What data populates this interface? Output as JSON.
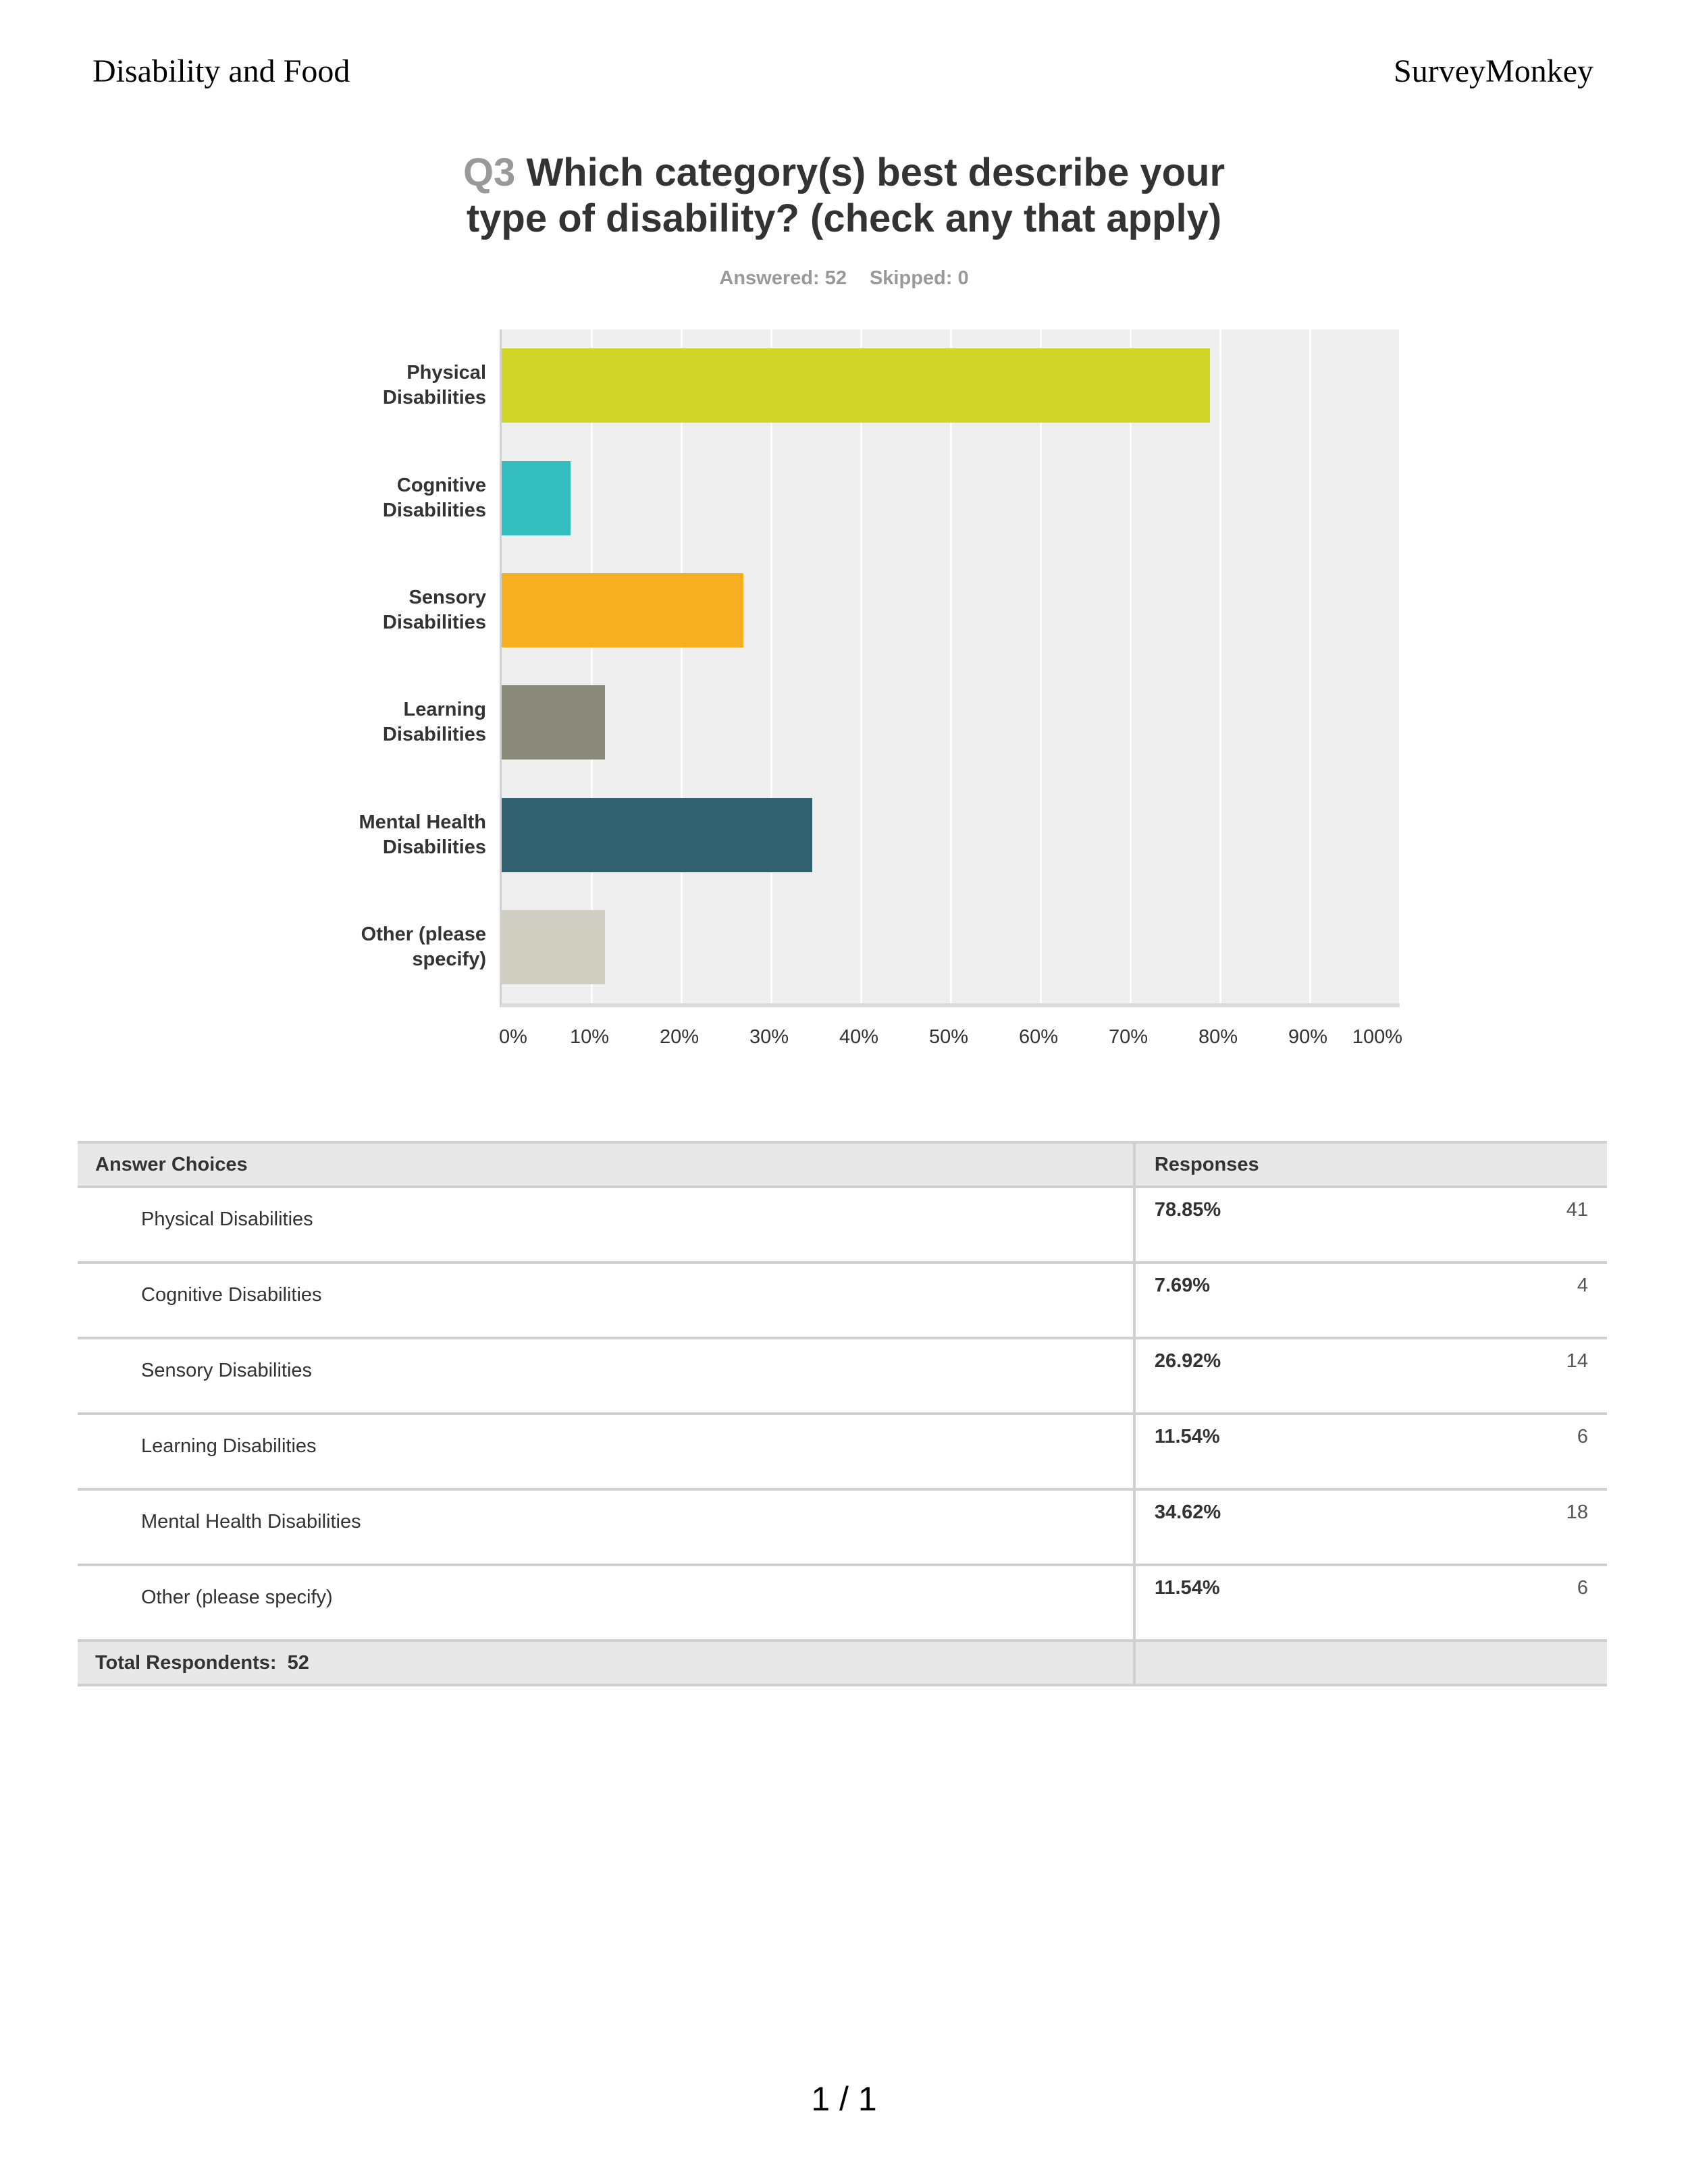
{
  "header": {
    "left": "Disability and Food",
    "right": "SurveyMonkey"
  },
  "question": {
    "number": "Q3",
    "title_line1": "Which category(s) best describe your",
    "title_line2": "type of disability? (check any that apply)",
    "answered": "Answered: 52",
    "skipped": "Skipped: 0"
  },
  "chart_data": {
    "type": "bar",
    "orientation": "horizontal",
    "title": "Q3 Which category(s) best describe your type of disability? (check any that apply)",
    "categories": [
      "Physical Disabilities",
      "Cognitive Disabilities",
      "Sensory Disabilities",
      "Learning Disabilities",
      "Mental Health Disabilities",
      "Other (please specify)"
    ],
    "category_label_lines": [
      [
        "Physical",
        "Disabilities"
      ],
      [
        "Cognitive",
        "Disabilities"
      ],
      [
        "Sensory",
        "Disabilities"
      ],
      [
        "Learning",
        "Disabilities"
      ],
      [
        "Mental Health",
        "Disabilities"
      ],
      [
        "Other (please",
        "specify)"
      ]
    ],
    "values": [
      78.85,
      7.69,
      26.92,
      11.54,
      34.62,
      11.54
    ],
    "colors": [
      "#cfd628",
      "#33bdbe",
      "#f6af20",
      "#8a8a7a",
      "#2f6170",
      "#cfcec0"
    ],
    "xlabel": "",
    "ylabel": "",
    "xlim": [
      0,
      100
    ],
    "xticks": [
      "0%",
      "10%",
      "20%",
      "30%",
      "40%",
      "50%",
      "60%",
      "70%",
      "80%",
      "90%",
      "100%"
    ],
    "grid": true,
    "legend": "none"
  },
  "table": {
    "headers": [
      "Answer Choices",
      "Responses"
    ],
    "rows": [
      {
        "choice": "Physical Disabilities",
        "percent": "78.85%",
        "count": "41"
      },
      {
        "choice": "Cognitive Disabilities",
        "percent": "7.69%",
        "count": "4"
      },
      {
        "choice": "Sensory Disabilities",
        "percent": "26.92%",
        "count": "14"
      },
      {
        "choice": "Learning Disabilities",
        "percent": "11.54%",
        "count": "6"
      },
      {
        "choice": "Mental Health Disabilities",
        "percent": "34.62%",
        "count": "18"
      },
      {
        "choice": "Other (please specify)",
        "percent": "11.54%",
        "count": "6"
      }
    ],
    "total_label": "Total Respondents:",
    "total_value": "52"
  },
  "footer": {
    "page": "1 / 1"
  }
}
